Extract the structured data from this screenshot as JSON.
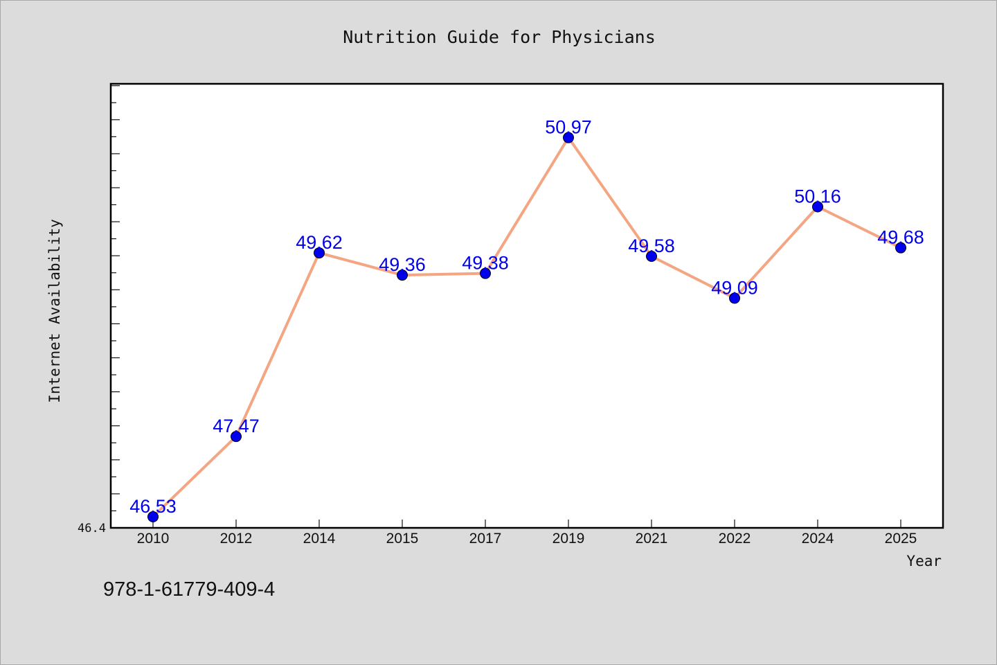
{
  "chart_data": {
    "type": "line",
    "title": "Nutrition Guide for Physicians",
    "xlabel": "Year",
    "ylabel": "Internet Availability",
    "categories": [
      "2010",
      "2012",
      "2014",
      "2015",
      "2017",
      "2019",
      "2021",
      "2022",
      "2024",
      "2025"
    ],
    "series": [
      {
        "values": [
          46.53,
          47.47,
          49.62,
          49.36,
          49.38,
          50.97,
          49.58,
          49.09,
          50.16,
          49.68
        ],
        "line_color": "#f4a582",
        "marker_color": "#0000ee"
      }
    ],
    "data_labels": [
      "46.53",
      "47.47",
      "49.62",
      "49.36",
      "49.38",
      "50.97",
      "49.58",
      "49.09",
      "50.16",
      "49.68"
    ],
    "label_color": "#0000ee",
    "y_tick_labels": [
      "46.4"
    ],
    "ylim": [
      46.4,
      51.6
    ],
    "grid": false,
    "legend": "none"
  },
  "footer": {
    "code": "978-1-61779-409-4"
  }
}
